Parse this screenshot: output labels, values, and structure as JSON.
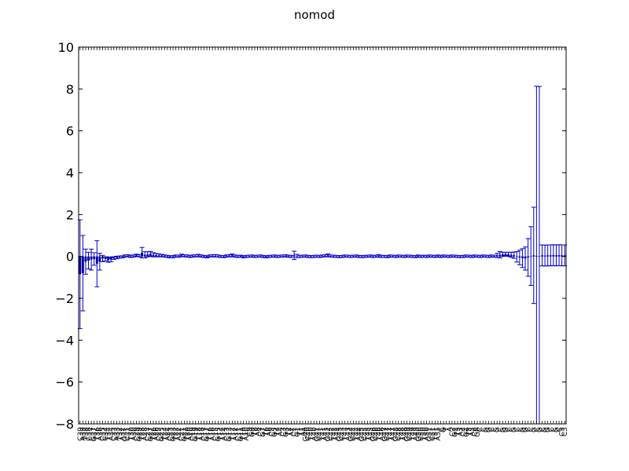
{
  "chart_data": {
    "type": "bar",
    "title": "nomod",
    "xlabel": "",
    "ylabel": "",
    "ylim": [
      -8,
      10
    ],
    "yticks": [
      -8,
      -6,
      -4,
      -2,
      0,
      2,
      4,
      6,
      8,
      10
    ],
    "grid": false,
    "bar_color": "#00008b",
    "error_color": "#0000cc",
    "categories": [
      "C39",
      "A39",
      "T38",
      "C38",
      "C37",
      "G37",
      "T36",
      "A36",
      "C35",
      "C34",
      "T34",
      "A34",
      "C33",
      "A33",
      "T32",
      "A32",
      "G31",
      "C31",
      "T30",
      "A30",
      "C29",
      "G29",
      "T28",
      "A28",
      "C27",
      "G27",
      "T26",
      "A26",
      "C25",
      "G25",
      "T24",
      "A24",
      "C23",
      "G23",
      "T22",
      "A22",
      "C21",
      "G21",
      "T20",
      "A20",
      "C19",
      "G19",
      "T18",
      "A18",
      "C17",
      "G17",
      "T16",
      "A16",
      "C15",
      "G15",
      "T14",
      "A14",
      "C13",
      "G13",
      "T12",
      "A12",
      "C11",
      "G11",
      "T10",
      "A10",
      "C9",
      "G9",
      "T8",
      "A8",
      "C7",
      "G7",
      "T6",
      "A6",
      "C5",
      "G5",
      "T4",
      "A4",
      "C3",
      "G3",
      "T2",
      "A2",
      "C1",
      "G1",
      "T1",
      "A1",
      "G40",
      "C40",
      "T40",
      "A40",
      "G41",
      "C41",
      "T41",
      "A41",
      "G42",
      "C42",
      "T42",
      "A42",
      "G43",
      "C43",
      "T43",
      "A43",
      "G44",
      "C44",
      "T44",
      "A44",
      "G45",
      "C45",
      "T45",
      "A45",
      "G46",
      "C46",
      "T46",
      "A46",
      "G47",
      "C47",
      "T47",
      "A47",
      "G48",
      "C48",
      "T48",
      "A48",
      "G49",
      "C49",
      "T49",
      "A49",
      "G50",
      "C50",
      "T50",
      "A50",
      "G51",
      "C51",
      "T51",
      "A51",
      "C",
      "G",
      "T",
      "A",
      "C2",
      "G2",
      "T3",
      "A3",
      "C4",
      "G4",
      "T5",
      "A5",
      "C6",
      "G6",
      "C",
      "C",
      "G",
      "G",
      "C",
      "C",
      "G",
      "C",
      "G",
      "G",
      "C",
      "C",
      "G",
      "C",
      "C",
      "G",
      "G",
      "C",
      "C",
      "G",
      "C",
      "G",
      "C",
      "G",
      "G",
      "C",
      "C",
      "G",
      "C",
      "C3",
      "C3"
    ],
    "values": [
      -0.85,
      -0.8,
      -0.25,
      -0.2,
      -0.15,
      -0.12,
      -0.35,
      -0.25,
      -0.1,
      -0.12,
      -0.18,
      -0.15,
      -0.08,
      -0.05,
      -0.03,
      -0.02,
      0.02,
      0.03,
      0.0,
      0.02,
      0.05,
      0.03,
      0.18,
      0.08,
      0.1,
      0.12,
      0.08,
      0.06,
      0.05,
      0.04,
      0.02,
      0.0,
      -0.02,
      -0.01,
      0.02,
      0.01,
      0.05,
      0.03,
      0.02,
      0.0,
      0.02,
      0.03,
      0.04,
      0.02,
      0.0,
      -0.02,
      0.02,
      0.03,
      0.03,
      0.02,
      0.0,
      -0.01,
      0.02,
      0.03,
      0.05,
      0.02,
      0.0,
      0.01,
      -0.02,
      0.0,
      0.01,
      0.02,
      0.0,
      0.01,
      0.02,
      0.0,
      -0.02,
      0.0,
      0.01,
      0.02,
      0.0,
      0.01,
      0.02,
      0.03,
      0.01,
      0.0,
      0.05,
      0.02,
      0.0,
      0.01,
      0.02,
      0.0,
      -0.01,
      0.0,
      0.01,
      0.0,
      0.02,
      0.03,
      0.05,
      0.02,
      0.01,
      0.0,
      -0.01,
      0.0,
      0.02,
      0.01,
      0.0,
      0.01,
      0.02,
      0.0,
      -0.01,
      0.0,
      0.01,
      0.02,
      0.0,
      0.01,
      0.03,
      0.0,
      0.0,
      -0.01,
      0.02,
      0.01,
      0.0,
      0.02,
      0.01,
      0.0,
      0.02,
      0.01,
      0.0,
      -0.01,
      0.02,
      0.0,
      0.01,
      0.0,
      0.02,
      0.01,
      0.0,
      0.02,
      0.0,
      0.02,
      0.01,
      0.0,
      0.02,
      0.01,
      0.0,
      -0.01,
      0.0,
      0.02,
      0.01,
      0.0,
      0.02,
      0.01,
      0.0,
      0.02,
      0.01,
      0.0,
      0.02,
      0.01,
      0.05,
      0.08,
      0.1,
      0.12,
      0.1,
      0.08,
      0.06,
      -0.02,
      -0.05,
      -0.08,
      -0.1,
      -0.05,
      0.02,
      0.05,
      0.03,
      0.02,
      0.05,
      0.04,
      0.05,
      0.05,
      0.06,
      0.05,
      0.06,
      0.05,
      0.05
    ],
    "errors": [
      2.6,
      1.8,
      0.6,
      0.4,
      0.5,
      0.3,
      1.1,
      0.4,
      0.15,
      0.1,
      0.1,
      0.1,
      0.06,
      0.06,
      0.05,
      0.05,
      0.05,
      0.05,
      0.05,
      0.05,
      0.06,
      0.05,
      0.25,
      0.15,
      0.12,
      0.12,
      0.1,
      0.08,
      0.07,
      0.06,
      0.05,
      0.05,
      0.05,
      0.05,
      0.05,
      0.05,
      0.06,
      0.05,
      0.05,
      0.05,
      0.05,
      0.05,
      0.06,
      0.05,
      0.05,
      0.05,
      0.05,
      0.05,
      0.06,
      0.05,
      0.05,
      0.05,
      0.05,
      0.05,
      0.07,
      0.05,
      0.05,
      0.05,
      0.05,
      0.05,
      0.05,
      0.05,
      0.05,
      0.05,
      0.05,
      0.05,
      0.05,
      0.05,
      0.05,
      0.05,
      0.05,
      0.05,
      0.05,
      0.05,
      0.05,
      0.05,
      0.2,
      0.08,
      0.05,
      0.05,
      0.05,
      0.05,
      0.05,
      0.05,
      0.05,
      0.05,
      0.05,
      0.05,
      0.07,
      0.05,
      0.05,
      0.05,
      0.05,
      0.05,
      0.05,
      0.05,
      0.05,
      0.05,
      0.05,
      0.05,
      0.05,
      0.05,
      0.05,
      0.05,
      0.05,
      0.05,
      0.06,
      0.05,
      0.05,
      0.05,
      0.05,
      0.05,
      0.05,
      0.05,
      0.05,
      0.05,
      0.05,
      0.05,
      0.05,
      0.05,
      0.05,
      0.05,
      0.05,
      0.05,
      0.05,
      0.05,
      0.05,
      0.05,
      0.05,
      0.05,
      0.05,
      0.05,
      0.05,
      0.05,
      0.05,
      0.05,
      0.05,
      0.05,
      0.05,
      0.05,
      0.05,
      0.05,
      0.05,
      0.05,
      0.05,
      0.05,
      0.05,
      0.05,
      0.1,
      0.15,
      0.1,
      0.08,
      0.1,
      0.12,
      0.15,
      0.25,
      0.35,
      0.45,
      0.55,
      0.9,
      1.4,
      2.3,
      8.1,
      8.1,
      0.5,
      0.5,
      0.5,
      0.5,
      0.5,
      0.5,
      0.5,
      0.5,
      0.5
    ]
  }
}
